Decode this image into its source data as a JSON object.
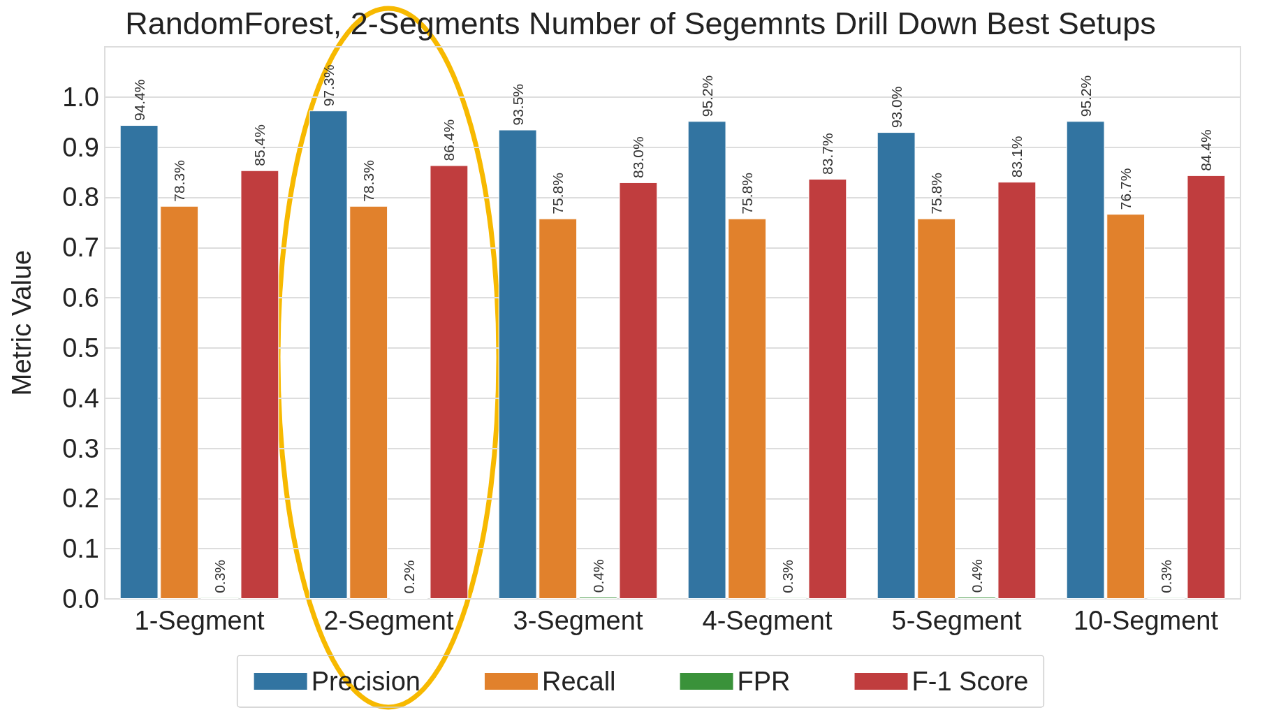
{
  "chart_data": {
    "type": "bar",
    "title": "RandomForest, 2-Segments Number of Segemnts Drill Down Best Setups",
    "ylabel": "Metric Value",
    "categories": [
      "1-Segment",
      "2-Segment",
      "3-Segment",
      "4-Segment",
      "5-Segment",
      "10-Segment"
    ],
    "series": [
      {
        "name": "Precision",
        "color": "#3274a1",
        "values": [
          0.944,
          0.973,
          0.935,
          0.952,
          0.93,
          0.952
        ],
        "value_labels": [
          "94.4%",
          "97.3%",
          "93.5%",
          "95.2%",
          "93.0%",
          "95.2%"
        ]
      },
      {
        "name": "Recall",
        "color": "#e1812c",
        "values": [
          0.783,
          0.783,
          0.758,
          0.758,
          0.758,
          0.767
        ],
        "value_labels": [
          "78.3%",
          "78.3%",
          "75.8%",
          "75.8%",
          "75.8%",
          "76.7%"
        ]
      },
      {
        "name": "FPR",
        "color": "#3a923a",
        "values": [
          0.003,
          0.002,
          0.004,
          0.003,
          0.004,
          0.003
        ],
        "value_labels": [
          "0.3%",
          "0.2%",
          "0.4%",
          "0.3%",
          "0.4%",
          "0.3%"
        ]
      },
      {
        "name": "F-1 Score",
        "color": "#c03d3e",
        "values": [
          0.854,
          0.864,
          0.83,
          0.837,
          0.831,
          0.844
        ],
        "value_labels": [
          "85.4%",
          "86.4%",
          "83.0%",
          "83.7%",
          "83.1%",
          "84.4%"
        ]
      }
    ],
    "ylim": [
      0,
      1.1
    ],
    "yticks": [
      {
        "value": 0,
        "label": "0.0"
      },
      0.1,
      0.2,
      0.3,
      0.4,
      0.5,
      0.6,
      0.7,
      0.8,
      0.9,
      {
        "value": 1,
        "label": "1.0"
      }
    ],
    "grid": "y",
    "legend": "bottom"
  }
}
